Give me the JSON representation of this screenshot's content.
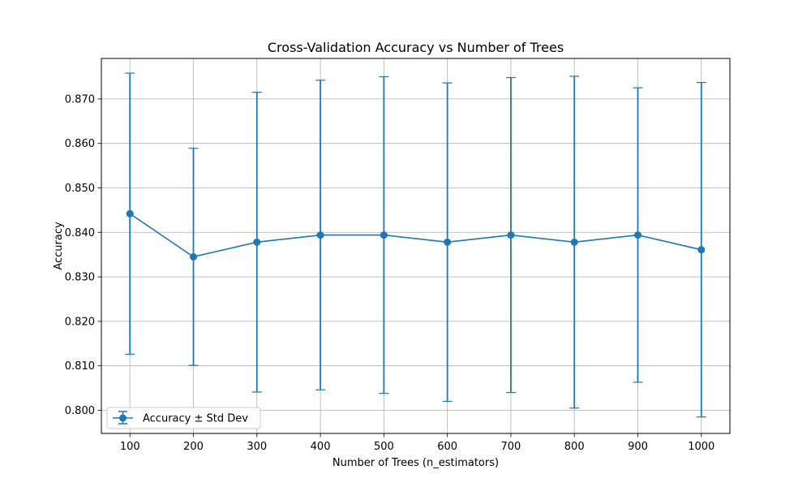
{
  "chart_data": {
    "type": "line",
    "title": "Cross-Validation Accuracy vs Number of Trees",
    "xlabel": "Number of Trees (n_estimators)",
    "ylabel": "Accuracy",
    "x": [
      100,
      200,
      300,
      400,
      500,
      600,
      700,
      800,
      900,
      1000
    ],
    "series": [
      {
        "name": "Accuracy ± Std Dev",
        "values": [
          0.8442,
          0.8345,
          0.8378,
          0.8394,
          0.8394,
          0.8378,
          0.8394,
          0.8378,
          0.8394,
          0.8361
        ],
        "errors": [
          0.0316,
          0.0244,
          0.0337,
          0.0348,
          0.0356,
          0.0358,
          0.0354,
          0.0373,
          0.0331,
          0.0376
        ],
        "color": "#1f77b4"
      }
    ],
    "xlim": [
      55,
      1045
    ],
    "ylim": [
      0.7948,
      0.8791
    ],
    "xticks": [
      "100",
      "200",
      "300",
      "400",
      "500",
      "600",
      "700",
      "800",
      "900",
      "1000"
    ],
    "yticks": [
      "0.800",
      "0.810",
      "0.820",
      "0.830",
      "0.840",
      "0.850",
      "0.860",
      "0.870"
    ],
    "grid": true,
    "legend_position": "lower-left"
  }
}
